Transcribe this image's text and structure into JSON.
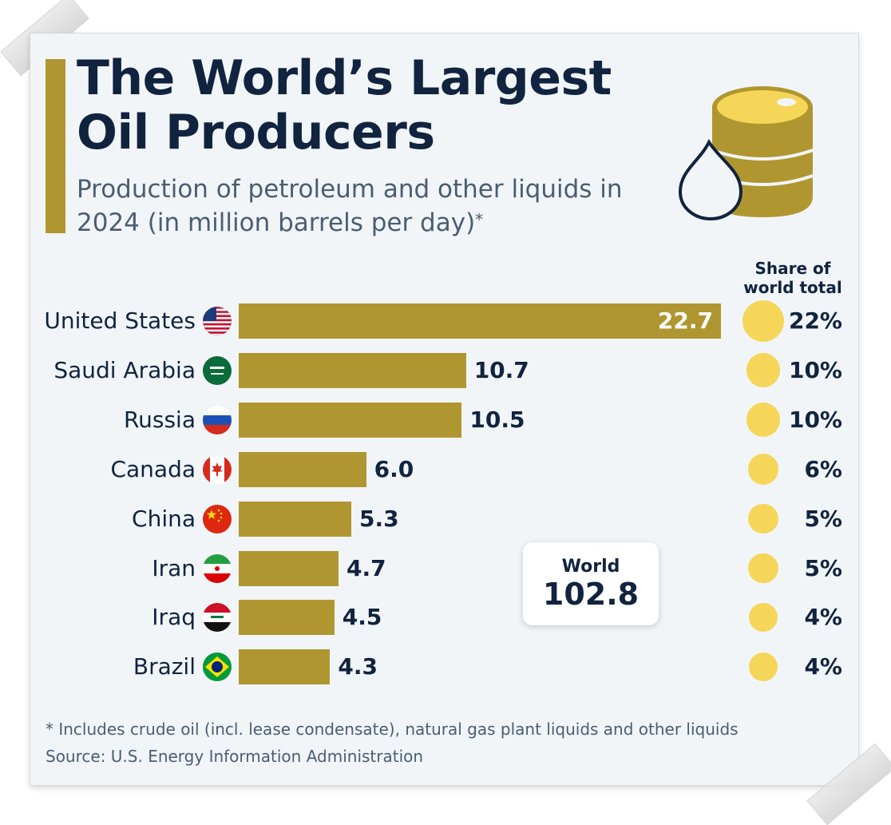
{
  "title": "The World’s Largest Oil Producers",
  "subtitle": "Production of petroleum and other liquids in 2024 (in million barrels per day)",
  "subtitle_asterisk": "*",
  "share_header": "Share of world total",
  "world_label": "World",
  "world_value": "102.8",
  "footnote": "* Includes crude oil (incl. lease condensate), natural gas plant liquids and other liquids",
  "source": "Source: U.S. Energy Information Administration",
  "colors": {
    "bar": "#b09630",
    "bubble": "#f5d659",
    "text_dark": "#10233f",
    "background": "#f2f5f8"
  },
  "chart_data": {
    "type": "bar",
    "orientation": "horizontal",
    "categories": [
      "United States",
      "Saudi Arabia",
      "Russia",
      "Canada",
      "China",
      "Iran",
      "Iraq",
      "Brazil"
    ],
    "values": [
      22.7,
      10.7,
      10.5,
      6.0,
      5.3,
      4.7,
      4.5,
      4.3
    ],
    "value_labels": [
      "22.7",
      "10.7",
      "10.5",
      "6.0",
      "5.3",
      "4.7",
      "4.5",
      "4.3"
    ],
    "share_of_world_total_percent": [
      22,
      10,
      10,
      6,
      5,
      5,
      4,
      4
    ],
    "share_labels": [
      "22%",
      "10%",
      "10%",
      "6%",
      "5%",
      "5%",
      "4%",
      "4%"
    ],
    "flag_icons": [
      "us-flag-icon",
      "saudi-arabia-flag-icon",
      "russia-flag-icon",
      "canada-flag-icon",
      "china-flag-icon",
      "iran-flag-icon",
      "iraq-flag-icon",
      "brazil-flag-icon"
    ],
    "xlim": [
      0,
      22.7
    ],
    "grid": false,
    "legend": "none"
  }
}
